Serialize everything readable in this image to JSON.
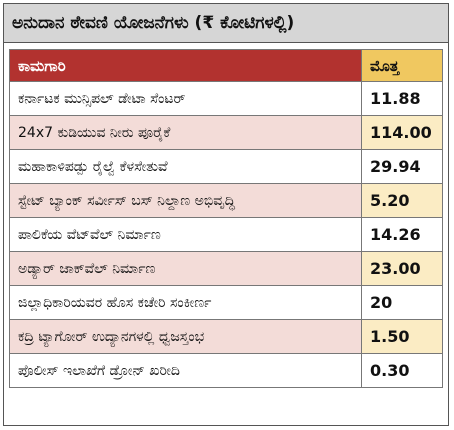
{
  "title": "ಅನುದಾನ ಠೇವಣಿ ಯೋಜನೆಗಳು (₹ ಕೋಟಿಗಳಲ್ಲಿ)",
  "headers": {
    "work": "ಕಾಮಗಾರಿ",
    "amount": "ಮೊತ್ತ"
  },
  "colors": {
    "header_red": "#b2322f",
    "header_yellow": "#f0c860",
    "row_pink": "#f3dcd8",
    "row_cream": "#fbecc4",
    "title_bg": "#d6d6d6"
  },
  "rows": [
    {
      "name": "ಕರ್ನಾಟಕ ಮುನ್ಸಿಪಲ್ ಡೇಟಾ ಸೆಂಟರ್",
      "amount": "11.88"
    },
    {
      "name": "24x7 ಕುಡಿಯುವ ನೀರು ಪೂರೈಕೆ",
      "amount": "114.00"
    },
    {
      "name": "ಮಹಾಕಾಳಿಪಡ್ಪು ರೈಲ್ವೆ ಕೆಳಸೇತುವೆ",
      "amount": "29.94"
    },
    {
      "name": "ಸ್ಟೇಟ್ ಬ್ಯಾಂಕ್ ಸರ್ವೀಸ್ ಬಸ್ ನಿಲ್ದಾಣ ಅಭಿವೃದ್ಧಿ",
      "amount": "5.20"
    },
    {
      "name": "ಪಾಲಿಕೆಯ ವೆಟ್‌ವೆಲ್ ನಿರ್ಮಾಣ",
      "amount": "14.26"
    },
    {
      "name": "ಅಡ್ಯಾರ್ ಜಾಕ್‌ವೆಲ್ ನಿರ್ಮಾಣ",
      "amount": "23.00"
    },
    {
      "name": "ಜಿಲ್ಲಾಧಿಕಾರಿಯವರ ಹೊಸ ಕಚೇರಿ ಸಂಕೀರ್ಣ",
      "amount": "20"
    },
    {
      "name": "ಕದ್ರಿ ಟ್ಯಾಗೋರ್ ಉದ್ಯಾನಗಳಲ್ಲಿ ಧ್ವಜಸ್ತಂಭ",
      "amount": "1.50"
    },
    {
      "name": "ಪೊಲೀಸ್ ಇಲಾಖೆಗೆ ಡ್ರೋನ್ ಖರೀದಿ",
      "amount": "0.30"
    }
  ]
}
